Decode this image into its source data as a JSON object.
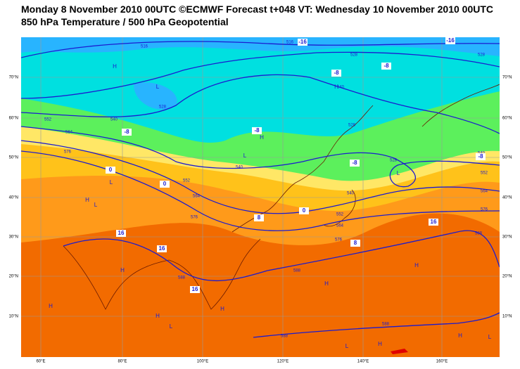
{
  "header": {
    "title": "Monday 8 November 2010 00UTC ©ECMWF Forecast t+048 VT: Wednesday 10 November 2010 00UTC",
    "subtitle": "850 hPa Temperature / 500 hPa Geopotential"
  },
  "map": {
    "longitude_labels": [
      "60°E",
      "80°E",
      "100°E",
      "120°E",
      "140°E",
      "160°E"
    ],
    "latitude_labels": [
      "70°N",
      "60°N",
      "50°N",
      "40°N",
      "30°N",
      "20°N",
      "10°N"
    ],
    "geopotential_labels": [
      "516",
      "516",
      "528",
      "528",
      "528",
      "540",
      "552",
      "564",
      "576",
      "540",
      "552",
      "564",
      "576",
      "528",
      "540",
      "552",
      "564",
      "576",
      "540",
      "552",
      "564",
      "576",
      "588",
      "588",
      "588",
      "588",
      "588",
      "540",
      "528"
    ],
    "temperature_labels": [
      "-16",
      "-16",
      "-8",
      "-8",
      "-8",
      "-8",
      "-8",
      "-8",
      "0",
      "0",
      "0",
      "8",
      "8",
      "16",
      "16",
      "16",
      "16"
    ],
    "pressure_centers": [
      "H",
      "L",
      "H",
      "L",
      "H",
      "H",
      "L",
      "L",
      "H",
      "H",
      "H",
      "L",
      "H",
      "H",
      "H",
      "H",
      "L",
      "H",
      "L",
      "L"
    ]
  }
}
